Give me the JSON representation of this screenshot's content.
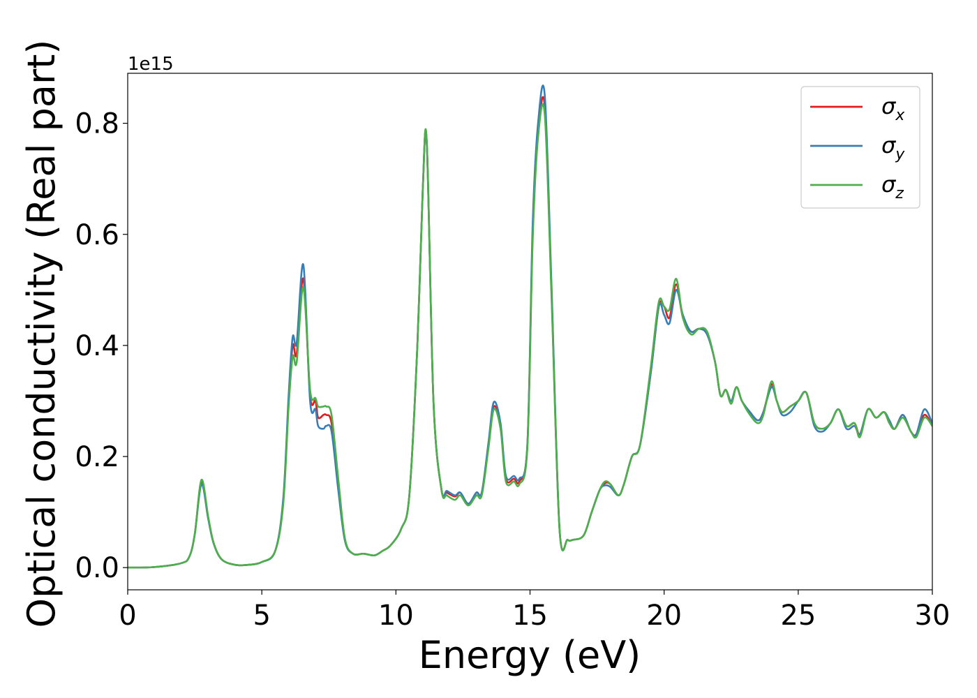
{
  "chart_data": {
    "type": "line",
    "title": "",
    "xlabel": "Energy (eV)",
    "ylabel": "Optical conductivity (Real part)",
    "y_offset_label": "1e15",
    "xlim": [
      0,
      30
    ],
    "ylim": [
      -0.04,
      0.89
    ],
    "y_unit_scale": 1000000000000000.0,
    "grid": false,
    "legend_position": "top-right",
    "x_ticks": [
      0,
      5,
      10,
      15,
      20,
      25,
      30
    ],
    "x_tick_labels": [
      "0",
      "5",
      "10",
      "15",
      "20",
      "25",
      "30"
    ],
    "y_ticks": [
      0.0,
      0.2,
      0.4,
      0.6,
      0.8
    ],
    "y_tick_labels": [
      "0.0",
      "0.2",
      "0.4",
      "0.6",
      "0.8"
    ],
    "x": [
      0,
      1,
      2,
      2.3,
      2.5,
      2.75,
      3.0,
      3.2,
      3.5,
      4.0,
      4.5,
      5.0,
      5.5,
      5.8,
      6.0,
      6.15,
      6.3,
      6.55,
      6.8,
      7.0,
      7.1,
      7.3,
      7.4,
      7.6,
      7.85,
      8.1,
      8.4,
      8.8,
      9.2,
      9.5,
      9.8,
      10.2,
      10.5,
      10.8,
      11.0,
      11.15,
      11.4,
      11.7,
      11.9,
      12.2,
      12.4,
      12.7,
      13.0,
      13.2,
      13.45,
      13.65,
      13.9,
      14.1,
      14.4,
      14.6,
      14.9,
      15.1,
      15.3,
      15.55,
      15.8,
      16.1,
      16.4,
      16.6,
      17.0,
      17.3,
      17.6,
      17.8,
      18.0,
      18.3,
      18.5,
      18.8,
      19.1,
      19.5,
      19.8,
      20.0,
      20.2,
      20.45,
      20.7,
      21.0,
      21.3,
      21.6,
      21.9,
      22.1,
      22.3,
      22.5,
      22.7,
      22.9,
      23.2,
      23.5,
      23.7,
      24.0,
      24.2,
      24.4,
      24.7,
      25.0,
      25.3,
      25.6,
      25.9,
      26.2,
      26.5,
      26.8,
      27.1,
      27.3,
      27.6,
      27.9,
      28.2,
      28.4,
      28.6,
      28.9,
      29.2,
      29.4,
      29.7,
      30.0
    ],
    "series": [
      {
        "name": "σx",
        "color": "#e41a1c",
        "values": [
          0.0,
          0.001,
          0.008,
          0.02,
          0.06,
          0.155,
          0.09,
          0.045,
          0.015,
          0.005,
          0.005,
          0.01,
          0.03,
          0.12,
          0.3,
          0.4,
          0.385,
          0.52,
          0.31,
          0.3,
          0.27,
          0.275,
          0.275,
          0.26,
          0.15,
          0.05,
          0.025,
          0.025,
          0.022,
          0.03,
          0.04,
          0.07,
          0.13,
          0.4,
          0.68,
          0.765,
          0.3,
          0.14,
          0.135,
          0.128,
          0.135,
          0.115,
          0.135,
          0.135,
          0.22,
          0.29,
          0.255,
          0.16,
          0.16,
          0.155,
          0.22,
          0.6,
          0.78,
          0.83,
          0.5,
          0.07,
          0.05,
          0.05,
          0.058,
          0.1,
          0.14,
          0.152,
          0.15,
          0.13,
          0.15,
          0.2,
          0.22,
          0.35,
          0.47,
          0.47,
          0.45,
          0.51,
          0.45,
          0.425,
          0.43,
          0.42,
          0.37,
          0.31,
          0.32,
          0.3,
          0.325,
          0.3,
          0.28,
          0.265,
          0.28,
          0.33,
          0.3,
          0.28,
          0.29,
          0.3,
          0.315,
          0.26,
          0.25,
          0.26,
          0.285,
          0.255,
          0.26,
          0.24,
          0.285,
          0.27,
          0.28,
          0.26,
          0.25,
          0.275,
          0.245,
          0.24,
          0.275,
          0.255
        ]
      },
      {
        "name": "σy",
        "color": "#377eb8",
        "values": [
          0.0,
          0.001,
          0.008,
          0.02,
          0.06,
          0.15,
          0.088,
          0.044,
          0.015,
          0.005,
          0.005,
          0.01,
          0.03,
          0.125,
          0.31,
          0.415,
          0.405,
          0.545,
          0.3,
          0.285,
          0.255,
          0.25,
          0.255,
          0.245,
          0.14,
          0.048,
          0.025,
          0.025,
          0.022,
          0.03,
          0.04,
          0.07,
          0.13,
          0.4,
          0.68,
          0.765,
          0.3,
          0.14,
          0.138,
          0.13,
          0.135,
          0.115,
          0.135,
          0.135,
          0.225,
          0.298,
          0.26,
          0.165,
          0.165,
          0.16,
          0.22,
          0.62,
          0.8,
          0.85,
          0.51,
          0.07,
          0.05,
          0.05,
          0.058,
          0.1,
          0.14,
          0.148,
          0.145,
          0.13,
          0.15,
          0.2,
          0.22,
          0.35,
          0.47,
          0.455,
          0.44,
          0.5,
          0.455,
          0.425,
          0.43,
          0.42,
          0.37,
          0.31,
          0.32,
          0.3,
          0.325,
          0.3,
          0.28,
          0.265,
          0.28,
          0.325,
          0.3,
          0.275,
          0.28,
          0.3,
          0.315,
          0.255,
          0.245,
          0.26,
          0.285,
          0.25,
          0.255,
          0.24,
          0.285,
          0.27,
          0.28,
          0.265,
          0.25,
          0.275,
          0.245,
          0.24,
          0.285,
          0.26
        ]
      },
      {
        "name": "σz",
        "color": "#4daf4a",
        "values": [
          0.0,
          0.001,
          0.008,
          0.02,
          0.06,
          0.158,
          0.092,
          0.045,
          0.015,
          0.005,
          0.005,
          0.01,
          0.03,
          0.115,
          0.29,
          0.38,
          0.37,
          0.505,
          0.32,
          0.305,
          0.29,
          0.29,
          0.29,
          0.275,
          0.16,
          0.052,
          0.025,
          0.025,
          0.022,
          0.03,
          0.04,
          0.07,
          0.13,
          0.4,
          0.68,
          0.768,
          0.3,
          0.14,
          0.13,
          0.122,
          0.13,
          0.112,
          0.13,
          0.13,
          0.215,
          0.285,
          0.25,
          0.155,
          0.155,
          0.15,
          0.215,
          0.59,
          0.775,
          0.815,
          0.49,
          0.068,
          0.05,
          0.05,
          0.058,
          0.1,
          0.14,
          0.155,
          0.15,
          0.13,
          0.15,
          0.2,
          0.22,
          0.36,
          0.478,
          0.47,
          0.465,
          0.52,
          0.45,
          0.42,
          0.43,
          0.425,
          0.37,
          0.31,
          0.32,
          0.295,
          0.325,
          0.3,
          0.275,
          0.26,
          0.275,
          0.335,
          0.3,
          0.28,
          0.29,
          0.3,
          0.315,
          0.26,
          0.25,
          0.26,
          0.285,
          0.255,
          0.26,
          0.235,
          0.285,
          0.27,
          0.28,
          0.26,
          0.25,
          0.27,
          0.245,
          0.235,
          0.27,
          0.255
        ]
      }
    ]
  }
}
